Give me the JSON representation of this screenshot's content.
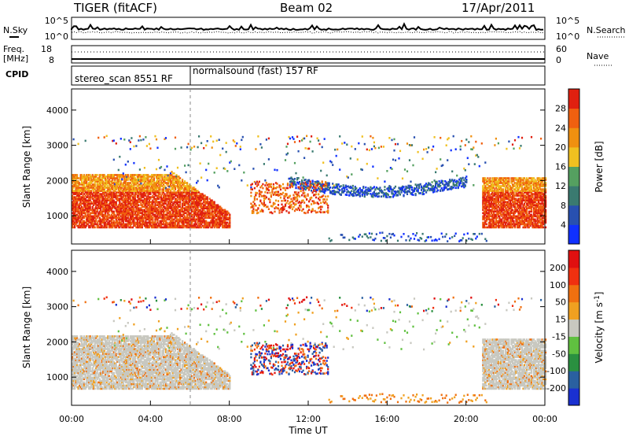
{
  "header": {
    "title": "TIGER (fitACF)",
    "beam": "Beam 02",
    "date": "17/Apr/2011"
  },
  "noise_panel": {
    "left_label": "N.Sky",
    "right_label": "N.Search",
    "ticks_left": [
      "10^5",
      "10^0"
    ],
    "ticks_right": [
      "10^5",
      "10^0"
    ]
  },
  "freq_panel": {
    "left_label_1": "Freq.",
    "left_label_2": "[MHz]",
    "right_label": "Nave",
    "ticks_left": [
      "18",
      "8"
    ],
    "ticks_right": [
      "60",
      "0"
    ]
  },
  "cpid_panel": {
    "label": "CPID",
    "segments": [
      {
        "name": "stereo_scan 8551 RF",
        "start_hour": 0
      },
      {
        "name": "normalsound (fast) 157 RF",
        "start_hour": 6
      }
    ]
  },
  "chart_data": [
    {
      "type": "heatmap",
      "parameter": "Power",
      "ylabel": "Slant Range [km]",
      "xlim": [
        "00:00",
        "24:00"
      ],
      "ylim": [
        200,
        4600
      ],
      "yticks": [
        "1000",
        "2000",
        "3000",
        "4000"
      ],
      "colorbar": {
        "label": "Power [dB]",
        "ticks": [
          "4",
          "8",
          "12",
          "16",
          "20",
          "24",
          "28"
        ],
        "colors": [
          "#1030ff",
          "#2850b0",
          "#3a7a70",
          "#55a060",
          "#f0c020",
          "#f09010",
          "#f06010",
          "#e02010"
        ]
      }
    },
    {
      "type": "heatmap",
      "parameter": "Velocity",
      "ylabel": "Slant Range [km]",
      "xlabel": "Time UT",
      "xlim": [
        "00:00",
        "24:00"
      ],
      "ylim": [
        200,
        4600
      ],
      "xticks": [
        "00:00",
        "04:00",
        "08:00",
        "12:00",
        "16:00",
        "20:00",
        "00:00"
      ],
      "yticks": [
        "1000",
        "2000",
        "3000",
        "4000"
      ],
      "colorbar": {
        "label": "Velocity [m s^-1]",
        "ticks": [
          "200",
          "100",
          "50",
          "15",
          "-15",
          "-50",
          "-100",
          "-200"
        ],
        "colors": [
          "#1a30d0",
          "#2a60a0",
          "#2a9040",
          "#60c040",
          "#c8c8c0",
          "#f0a020",
          "#f07010",
          "#f03010",
          "#e01010"
        ]
      }
    }
  ]
}
